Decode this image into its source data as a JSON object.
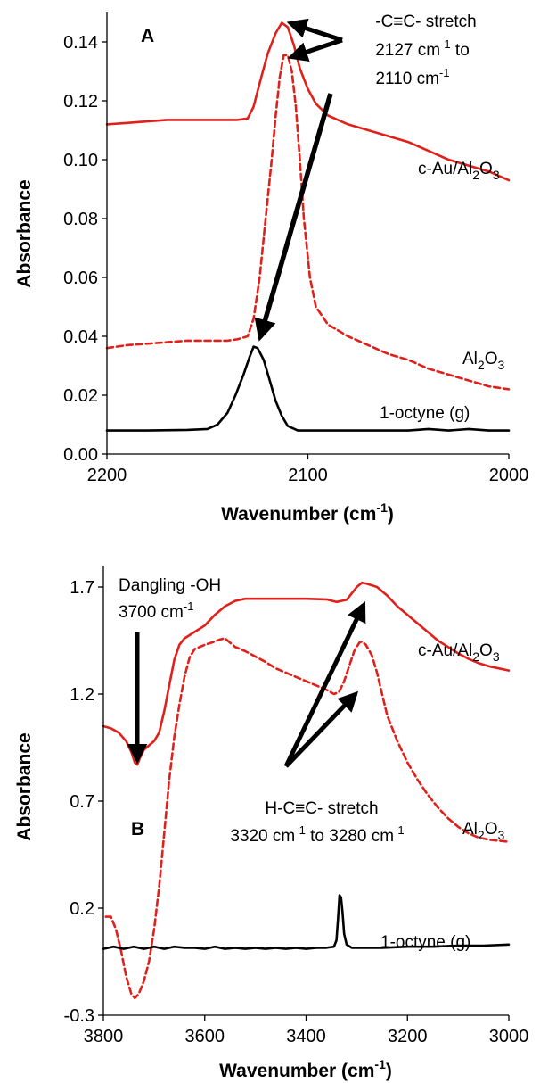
{
  "chart_data": [
    {
      "type": "line",
      "panel_label": "A",
      "xlabel_main": "Wavenumber (cm",
      "xlabel_sup": "-1",
      "xlabel_end": ")",
      "ylabel": "Absorbance",
      "xlim": [
        2200,
        2000
      ],
      "ylim": [
        0.0,
        0.15
      ],
      "xticks": [
        "2200",
        "2100",
        "2000"
      ],
      "xtick_values": [
        2200,
        2100,
        2000
      ],
      "yticks": [
        "0.00",
        "0.02",
        "0.04",
        "0.06",
        "0.08",
        "0.10",
        "0.12",
        "0.14"
      ],
      "ytick_values": [
        0.0,
        0.02,
        0.04,
        0.06,
        0.08,
        0.1,
        0.12,
        0.14
      ],
      "series": [
        {
          "name": "c-Au/Al2O3",
          "color": "#e0201b",
          "dash": "solid",
          "points": [
            [
              2200,
              0.112
            ],
            [
              2190,
              0.1125
            ],
            [
              2180,
              0.113
            ],
            [
              2170,
              0.1135
            ],
            [
              2160,
              0.1135
            ],
            [
              2150,
              0.1135
            ],
            [
              2140,
              0.1135
            ],
            [
              2135,
              0.1135
            ],
            [
              2130,
              0.114
            ],
            [
              2127,
              0.118
            ],
            [
              2124,
              0.126
            ],
            [
              2120,
              0.136
            ],
            [
              2116,
              0.143
            ],
            [
              2113,
              0.1465
            ],
            [
              2110,
              0.145
            ],
            [
              2107,
              0.139
            ],
            [
              2104,
              0.131
            ],
            [
              2100,
              0.124
            ],
            [
              2096,
              0.119
            ],
            [
              2090,
              0.115
            ],
            [
              2080,
              0.112
            ],
            [
              2070,
              0.11
            ],
            [
              2060,
              0.108
            ],
            [
              2050,
              0.106
            ],
            [
              2040,
              0.103
            ],
            [
              2030,
              0.1
            ],
            [
              2020,
              0.098
            ],
            [
              2010,
              0.096
            ],
            [
              2000,
              0.093
            ]
          ]
        },
        {
          "name": "Al2O3",
          "color": "#e0201b",
          "dash": "dashed",
          "points": [
            [
              2200,
              0.036
            ],
            [
              2190,
              0.037
            ],
            [
              2180,
              0.0375
            ],
            [
              2170,
              0.038
            ],
            [
              2160,
              0.0385
            ],
            [
              2150,
              0.0385
            ],
            [
              2140,
              0.0385
            ],
            [
              2135,
              0.039
            ],
            [
              2130,
              0.04
            ],
            [
              2127,
              0.046
            ],
            [
              2124,
              0.06
            ],
            [
              2121,
              0.08
            ],
            [
              2118,
              0.1
            ],
            [
              2116,
              0.115
            ],
            [
              2114,
              0.128
            ],
            [
              2112,
              0.1355
            ],
            [
              2110,
              0.1355
            ],
            [
              2108,
              0.13
            ],
            [
              2106,
              0.118
            ],
            [
              2104,
              0.1
            ],
            [
              2102,
              0.08
            ],
            [
              2099,
              0.06
            ],
            [
              2096,
              0.05
            ],
            [
              2090,
              0.044
            ],
            [
              2080,
              0.04
            ],
            [
              2070,
              0.037
            ],
            [
              2060,
              0.034
            ],
            [
              2050,
              0.032
            ],
            [
              2040,
              0.029
            ],
            [
              2030,
              0.027
            ],
            [
              2020,
              0.025
            ],
            [
              2010,
              0.023
            ],
            [
              2000,
              0.022
            ]
          ]
        },
        {
          "name": "1-octyne (g)",
          "color": "#000000",
          "dash": "solid",
          "points": [
            [
              2200,
              0.008
            ],
            [
              2180,
              0.008
            ],
            [
              2160,
              0.0082
            ],
            [
              2150,
              0.0085
            ],
            [
              2145,
              0.01
            ],
            [
              2140,
              0.014
            ],
            [
              2136,
              0.02
            ],
            [
              2132,
              0.027
            ],
            [
              2129,
              0.033
            ],
            [
              2127,
              0.0365
            ],
            [
              2125,
              0.036
            ],
            [
              2122,
              0.032
            ],
            [
              2119,
              0.025
            ],
            [
              2116,
              0.018
            ],
            [
              2113,
              0.013
            ],
            [
              2110,
              0.0095
            ],
            [
              2105,
              0.008
            ],
            [
              2090,
              0.008
            ],
            [
              2070,
              0.008
            ],
            [
              2050,
              0.008
            ],
            [
              2040,
              0.0085
            ],
            [
              2030,
              0.008
            ],
            [
              2020,
              0.0085
            ],
            [
              2010,
              0.008
            ],
            [
              2000,
              0.008
            ]
          ]
        }
      ],
      "labels": {
        "c_au_prefix": "c-Au/Al",
        "c_au_sub1": "2",
        "c_au_mid": "O",
        "c_au_sub2": "3",
        "al2o3_prefix": "Al",
        "al2o3_sub1": "2",
        "al2o3_mid": "O",
        "al2o3_sub2": "3",
        "octyne": "1-octyne  (g)"
      },
      "annotation": {
        "line1": "-C≡C- stretch",
        "line2_main": "2127 cm",
        "line2_sup": "-1",
        "line2_end": " to",
        "line3_main": "2110 cm",
        "line3_sup": "-1"
      }
    },
    {
      "type": "line",
      "panel_label": "B",
      "xlabel_main": "Wavenumber (cm",
      "xlabel_sup": "-1",
      "xlabel_end": ")",
      "ylabel": "Absorbance",
      "xlim": [
        3800,
        3000
      ],
      "ylim": [
        -0.3,
        1.8
      ],
      "xticks": [
        "3800",
        "3600",
        "3400",
        "3200",
        "3000"
      ],
      "xtick_values": [
        3800,
        3600,
        3400,
        3200,
        3000
      ],
      "yticks": [
        "-0.3",
        "0.2",
        "0.7",
        "1.2",
        "1.7"
      ],
      "ytick_values": [
        -0.3,
        0.2,
        0.7,
        1.2,
        1.7
      ],
      "series": [
        {
          "name": "c-Au/Al2O3",
          "color": "#e0201b",
          "dash": "solid",
          "points": [
            [
              3800,
              1.05
            ],
            [
              3785,
              1.04
            ],
            [
              3770,
              1.02
            ],
            [
              3755,
              0.98
            ],
            [
              3745,
              0.93
            ],
            [
              3738,
              0.88
            ],
            [
              3733,
              0.87
            ],
            [
              3728,
              0.9
            ],
            [
              3720,
              0.94
            ],
            [
              3710,
              0.96
            ],
            [
              3700,
              0.98
            ],
            [
              3690,
              1.02
            ],
            [
              3680,
              1.12
            ],
            [
              3670,
              1.24
            ],
            [
              3660,
              1.36
            ],
            [
              3650,
              1.43
            ],
            [
              3640,
              1.46
            ],
            [
              3620,
              1.49
            ],
            [
              3600,
              1.52
            ],
            [
              3580,
              1.57
            ],
            [
              3560,
              1.61
            ],
            [
              3540,
              1.635
            ],
            [
              3520,
              1.645
            ],
            [
              3500,
              1.645
            ],
            [
              3450,
              1.645
            ],
            [
              3400,
              1.645
            ],
            [
              3360,
              1.642
            ],
            [
              3340,
              1.63
            ],
            [
              3320,
              1.64
            ],
            [
              3310,
              1.67
            ],
            [
              3300,
              1.7
            ],
            [
              3290,
              1.72
            ],
            [
              3280,
              1.715
            ],
            [
              3260,
              1.7
            ],
            [
              3240,
              1.66
            ],
            [
              3220,
              1.61
            ],
            [
              3200,
              1.57
            ],
            [
              3180,
              1.53
            ],
            [
              3160,
              1.49
            ],
            [
              3140,
              1.45
            ],
            [
              3120,
              1.42
            ],
            [
              3100,
              1.39
            ],
            [
              3080,
              1.365
            ],
            [
              3060,
              1.345
            ],
            [
              3040,
              1.33
            ],
            [
              3020,
              1.32
            ],
            [
              3000,
              1.31
            ]
          ]
        },
        {
          "name": "Al2O3",
          "color": "#e0201b",
          "dash": "dashed",
          "points": [
            [
              3795,
              0.16
            ],
            [
              3785,
              0.16
            ],
            [
              3775,
              0.1
            ],
            [
              3765,
              0.0
            ],
            [
              3755,
              -0.12
            ],
            [
              3745,
              -0.2
            ],
            [
              3738,
              -0.22
            ],
            [
              3730,
              -0.2
            ],
            [
              3720,
              -0.14
            ],
            [
              3710,
              -0.05
            ],
            [
              3700,
              0.1
            ],
            [
              3690,
              0.3
            ],
            [
              3680,
              0.55
            ],
            [
              3670,
              0.8
            ],
            [
              3660,
              1.0
            ],
            [
              3650,
              1.15
            ],
            [
              3640,
              1.28
            ],
            [
              3630,
              1.37
            ],
            [
              3620,
              1.41
            ],
            [
              3600,
              1.43
            ],
            [
              3580,
              1.445
            ],
            [
              3570,
              1.455
            ],
            [
              3560,
              1.46
            ],
            [
              3550,
              1.44
            ],
            [
              3540,
              1.42
            ],
            [
              3520,
              1.4
            ],
            [
              3500,
              1.375
            ],
            [
              3480,
              1.35
            ],
            [
              3460,
              1.32
            ],
            [
              3440,
              1.3
            ],
            [
              3420,
              1.28
            ],
            [
              3400,
              1.26
            ],
            [
              3380,
              1.24
            ],
            [
              3360,
              1.22
            ],
            [
              3345,
              1.2
            ],
            [
              3335,
              1.21
            ],
            [
              3325,
              1.26
            ],
            [
              3315,
              1.33
            ],
            [
              3305,
              1.4
            ],
            [
              3295,
              1.44
            ],
            [
              3290,
              1.445
            ],
            [
              3282,
              1.43
            ],
            [
              3270,
              1.38
            ],
            [
              3260,
              1.3
            ],
            [
              3250,
              1.2
            ],
            [
              3240,
              1.1
            ],
            [
              3220,
              0.98
            ],
            [
              3200,
              0.88
            ],
            [
              3180,
              0.8
            ],
            [
              3160,
              0.73
            ],
            [
              3140,
              0.67
            ],
            [
              3120,
              0.62
            ],
            [
              3100,
              0.58
            ],
            [
              3080,
              0.55
            ],
            [
              3060,
              0.53
            ],
            [
              3040,
              0.52
            ],
            [
              3020,
              0.515
            ],
            [
              3000,
              0.51
            ]
          ]
        },
        {
          "name": "1-octyne (g)",
          "color": "#000000",
          "dash": "solid",
          "points": [
            [
              3800,
              0.01
            ],
            [
              3780,
              0.02
            ],
            [
              3760,
              0.01
            ],
            [
              3740,
              0.02
            ],
            [
              3720,
              0.01
            ],
            [
              3700,
              0.02
            ],
            [
              3680,
              0.01
            ],
            [
              3660,
              0.02
            ],
            [
              3640,
              0.015
            ],
            [
              3620,
              0.015
            ],
            [
              3600,
              0.01
            ],
            [
              3580,
              0.02
            ],
            [
              3560,
              0.01
            ],
            [
              3540,
              0.015
            ],
            [
              3520,
              0.01
            ],
            [
              3500,
              0.015
            ],
            [
              3480,
              0.01
            ],
            [
              3460,
              0.015
            ],
            [
              3440,
              0.01
            ],
            [
              3420,
              0.015
            ],
            [
              3400,
              0.01
            ],
            [
              3380,
              0.015
            ],
            [
              3360,
              0.015
            ],
            [
              3345,
              0.02
            ],
            [
              3340,
              0.05
            ],
            [
              3337,
              0.15
            ],
            [
              3334,
              0.26
            ],
            [
              3331,
              0.25
            ],
            [
              3328,
              0.18
            ],
            [
              3325,
              0.08
            ],
            [
              3320,
              0.03
            ],
            [
              3310,
              0.015
            ],
            [
              3300,
              0.015
            ],
            [
              3250,
              0.015
            ],
            [
              3200,
              0.02
            ],
            [
              3150,
              0.02
            ],
            [
              3100,
              0.025
            ],
            [
              3050,
              0.025
            ],
            [
              3000,
              0.03
            ]
          ]
        }
      ],
      "labels": {
        "c_au_prefix": "c-Au/Al",
        "c_au_sub1": "2",
        "c_au_mid": "O",
        "c_au_sub2": "3",
        "al2o3_prefix": "Al",
        "al2o3_sub1": "2",
        "al2o3_mid": "O",
        "al2o3_sub2": "3",
        "octyne": "1-octyne  (g)"
      },
      "annotation_oh": {
        "line1": "Dangling -OH",
        "line2_main": "3700 cm",
        "line2_sup": "-1"
      },
      "annotation_ch": {
        "line1": "H-C≡C- stretch",
        "line2_main": "3320 cm",
        "line2_sup": "-1",
        "line2_mid": " to 3280 cm",
        "line2_sup2": "-1"
      }
    }
  ]
}
